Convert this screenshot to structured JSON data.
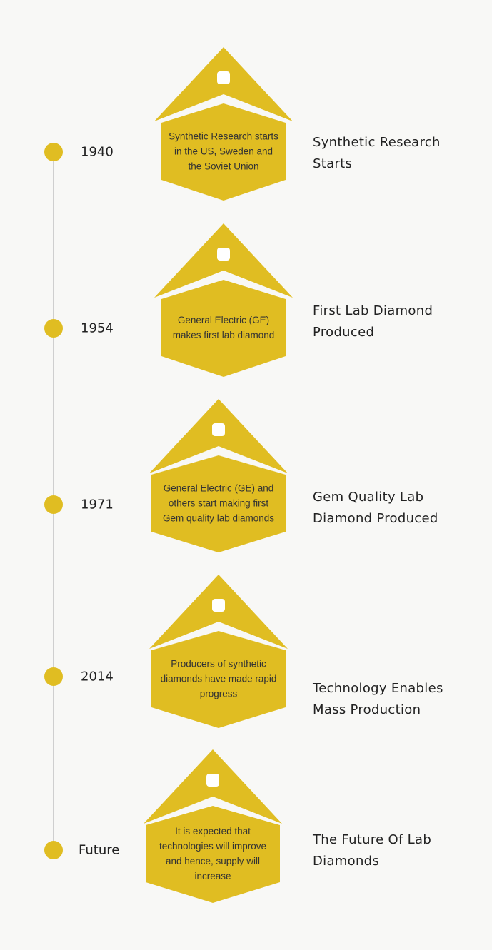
{
  "timeline": {
    "items": [
      {
        "year": "1940",
        "description": "Synthetic Research starts in the US, Sweden and the Soviet Union",
        "title": "Synthetic Research Starts"
      },
      {
        "year": "1954",
        "description": "General Electric (GE) makes first lab diamond",
        "title": "First Lab Diamond Produced"
      },
      {
        "year": "1971",
        "description": "General Electric (GE) and others start making first Gem quality lab diamonds",
        "title": "Gem Quality Lab Diamond Produced"
      },
      {
        "year": "2014",
        "description": "Producers of synthetic diamonds have made rapid progress",
        "title": "Technology Enables Mass Production"
      },
      {
        "year": "Future",
        "description": "It is expected that technologies will improve and hence, supply will increase",
        "title": "The Future Of Lab Diamonds"
      }
    ]
  }
}
